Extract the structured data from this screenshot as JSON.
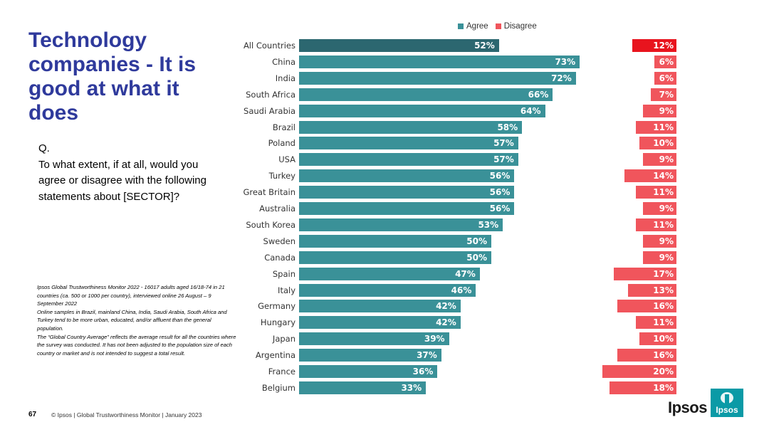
{
  "title": "Technology companies - It is good at what it does",
  "question": {
    "label": "Q.",
    "text": "To what extent, if at all, would you agree or disagree with the following statements about [SECTOR]?"
  },
  "notes": [
    "Ipsos Global Trustworthiness Monitor 2022 - 16017 adults aged 16/18-74 in 21 countries (ca. 500 or 1000 per country), interviewed online 26 August – 9 September 2022",
    "Online samples in Brazil, mainland China, India, Saudi Arabia, South Africa and Turkey tend to be more urban, educated, and/or affluent than the general population.",
    "The “Global Country Average” reflects the average result for all the countries where the survey was conducted. It has not been adjusted to the population size of each country or market and is not intended to suggest a total result."
  ],
  "footer": {
    "page_number": "67",
    "text": "© Ipsos | Global Trustworthiness Monitor | January 2023"
  },
  "logo": {
    "text": "Ipsos",
    "box_text": "Ipsos"
  },
  "colors": {
    "title": "#2f3a9c",
    "agree": "#3a9198",
    "agree_highlight": "#2c6770",
    "disagree": "#f0555c",
    "disagree_highlight": "#e8141e"
  },
  "chart_data": {
    "type": "bar",
    "orientation": "horizontal",
    "legend_position": "top",
    "categories": [
      "All Countries",
      "China",
      "India",
      "South Africa",
      "Saudi Arabia",
      "Brazil",
      "Poland",
      "USA",
      "Turkey",
      "Great Britain",
      "Australia",
      "South Korea",
      "Sweden",
      "Canada",
      "Spain",
      "Italy",
      "Germany",
      "Hungary",
      "Japan",
      "Argentina",
      "France",
      "Belgium"
    ],
    "series": [
      {
        "name": "Agree",
        "values": [
          52,
          73,
          72,
          66,
          64,
          58,
          57,
          57,
          56,
          56,
          56,
          53,
          50,
          50,
          47,
          46,
          42,
          42,
          39,
          37,
          36,
          33
        ],
        "labels": [
          "52%",
          "73%",
          "72%",
          "66%",
          "64%",
          "58%",
          "57%",
          "57%",
          "56%",
          "56%",
          "56%",
          "53%",
          "50%",
          "50%",
          "47%",
          "46%",
          "42%",
          "42%",
          "39%",
          "37%",
          "36%",
          "33%"
        ]
      },
      {
        "name": "Disagree",
        "values": [
          12,
          6,
          6,
          7,
          9,
          11,
          10,
          9,
          14,
          11,
          9,
          11,
          9,
          9,
          17,
          13,
          16,
          11,
          10,
          16,
          20,
          18
        ],
        "labels": [
          "12%",
          "6%",
          "6%",
          "7%",
          "9%",
          "11%",
          "10%",
          "9%",
          "14%",
          "11%",
          "9%",
          "11%",
          "9%",
          "9%",
          "17%",
          "13%",
          "16%",
          "11%",
          "10%",
          "16%",
          "20%",
          "18%"
        ]
      }
    ]
  }
}
